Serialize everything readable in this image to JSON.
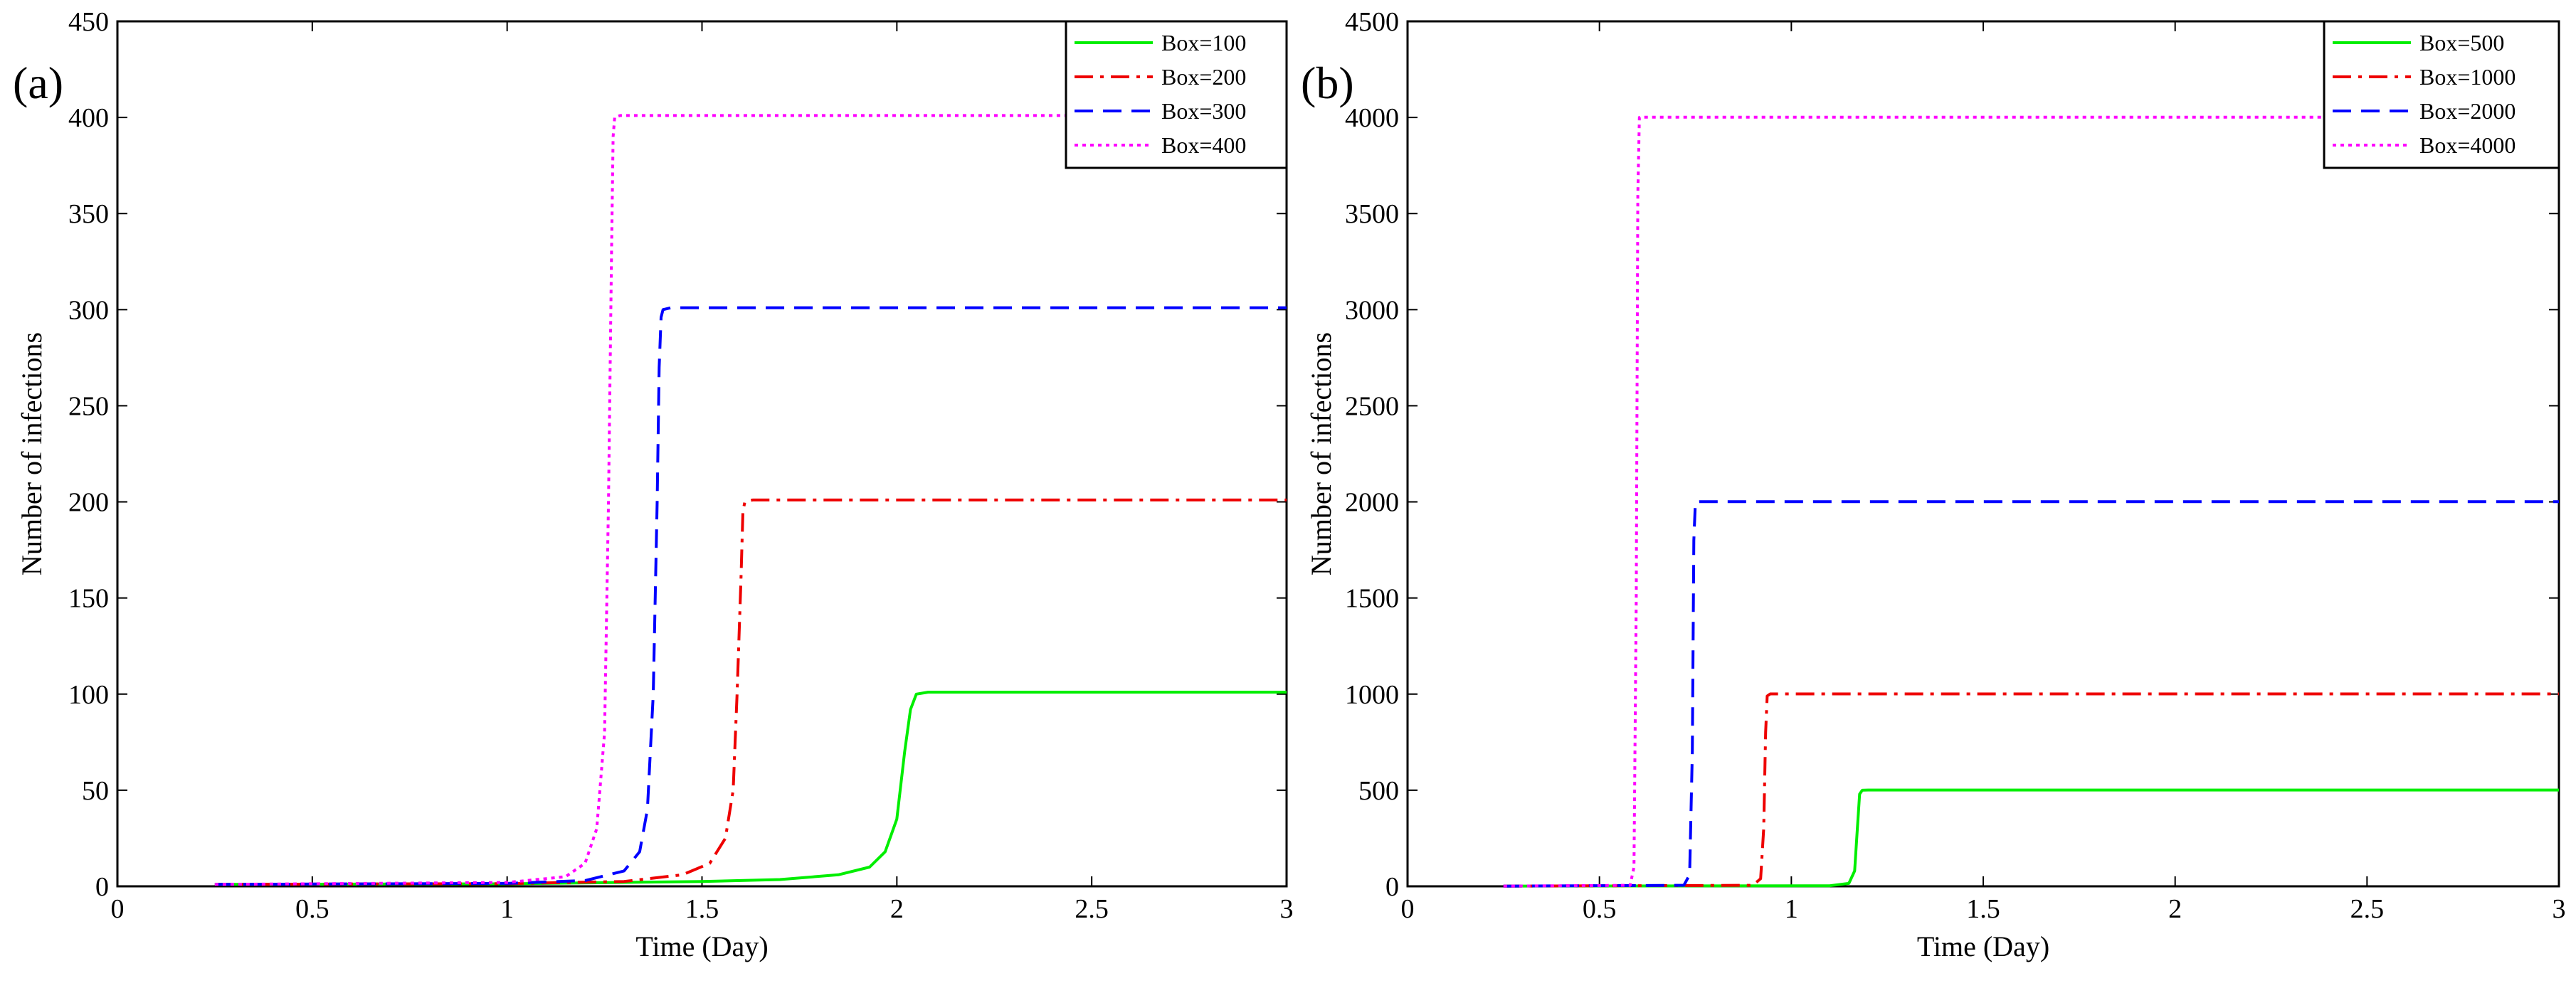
{
  "chart_data": [
    {
      "type": "line",
      "panel_label": "(a)",
      "xlabel": "Time (Day)",
      "ylabel": "Number of infections",
      "xlim": [
        0,
        3
      ],
      "ylim": [
        0,
        450
      ],
      "xticks": [
        0,
        0.5,
        1,
        1.5,
        2,
        2.5,
        3
      ],
      "xtick_labels": [
        "0",
        "0.5",
        "1",
        "1.5",
        "2",
        "2.5",
        "3"
      ],
      "yticks": [
        0,
        50,
        100,
        150,
        200,
        250,
        300,
        350,
        400,
        450
      ],
      "ytick_labels": [
        "0",
        "50",
        "100",
        "150",
        "200",
        "250",
        "300",
        "350",
        "400",
        "450"
      ],
      "legend_position": "top-right",
      "series": [
        {
          "name": "Box=100",
          "color": "#00ee00",
          "dash": "solid",
          "points": [
            [
              0.25,
              1
            ],
            [
              1.0,
              1.3
            ],
            [
              1.5,
              2.5
            ],
            [
              1.7,
              3.5
            ],
            [
              1.85,
              6
            ],
            [
              1.93,
              10
            ],
            [
              1.97,
              18
            ],
            [
              2.0,
              35
            ],
            [
              2.02,
              70
            ],
            [
              2.035,
              92
            ],
            [
              2.05,
              100
            ],
            [
              2.08,
              101
            ],
            [
              3.0,
              101
            ]
          ]
        },
        {
          "name": "Box=200",
          "color": "#ee0000",
          "dash": "dashdot",
          "points": [
            [
              0.25,
              1
            ],
            [
              1.0,
              1.4
            ],
            [
              1.3,
              2.5
            ],
            [
              1.45,
              6
            ],
            [
              1.52,
              12
            ],
            [
              1.56,
              25
            ],
            [
              1.58,
              50
            ],
            [
              1.59,
              100
            ],
            [
              1.6,
              160
            ],
            [
              1.605,
              195
            ],
            [
              1.61,
              200
            ],
            [
              1.63,
              201
            ],
            [
              3.0,
              201
            ]
          ]
        },
        {
          "name": "Box=300",
          "color": "#0000ff",
          "dash": "dashed",
          "points": [
            [
              0.25,
              1
            ],
            [
              1.0,
              1.5
            ],
            [
              1.2,
              3
            ],
            [
              1.3,
              8
            ],
            [
              1.34,
              18
            ],
            [
              1.36,
              40
            ],
            [
              1.375,
              100
            ],
            [
              1.385,
              200
            ],
            [
              1.39,
              270
            ],
            [
              1.395,
              296
            ],
            [
              1.4,
              300
            ],
            [
              1.42,
              301
            ],
            [
              3.0,
              301
            ]
          ]
        },
        {
          "name": "Box=400",
          "color": "#ff00ff",
          "dash": "dotted",
          "points": [
            [
              0.25,
              1
            ],
            [
              1.0,
              2
            ],
            [
              1.15,
              5
            ],
            [
              1.2,
              12
            ],
            [
              1.23,
              30
            ],
            [
              1.25,
              80
            ],
            [
              1.26,
              200
            ],
            [
              1.268,
              330
            ],
            [
              1.272,
              390
            ],
            [
              1.276,
              400
            ],
            [
              1.29,
              401
            ],
            [
              3.0,
              401
            ]
          ]
        }
      ]
    },
    {
      "type": "line",
      "panel_label": "(b)",
      "xlabel": "Time (Day)",
      "ylabel": "Number of infections",
      "xlim": [
        0,
        3
      ],
      "ylim": [
        0,
        4500
      ],
      "xticks": [
        0,
        0.5,
        1,
        1.5,
        2,
        2.5,
        3
      ],
      "xtick_labels": [
        "0",
        "0.5",
        "1",
        "1.5",
        "2",
        "2.5",
        "3"
      ],
      "yticks": [
        0,
        500,
        1000,
        1500,
        2000,
        2500,
        3000,
        3500,
        4000,
        4500
      ],
      "ytick_labels": [
        "0",
        "500",
        "1000",
        "1500",
        "2000",
        "2500",
        "3000",
        "3500",
        "4000",
        "4500"
      ],
      "legend_position": "top-right",
      "series": [
        {
          "name": "Box=500",
          "color": "#00ee00",
          "dash": "solid",
          "points": [
            [
              0.25,
              1
            ],
            [
              1.1,
              3
            ],
            [
              1.15,
              15
            ],
            [
              1.165,
              80
            ],
            [
              1.172,
              300
            ],
            [
              1.178,
              480
            ],
            [
              1.185,
              500
            ],
            [
              1.2,
              501
            ],
            [
              3.0,
              501
            ]
          ]
        },
        {
          "name": "Box=1000",
          "color": "#ee0000",
          "dash": "dashdot",
          "points": [
            [
              0.25,
              1
            ],
            [
              0.9,
              5
            ],
            [
              0.92,
              40
            ],
            [
              0.928,
              300
            ],
            [
              0.933,
              800
            ],
            [
              0.937,
              990
            ],
            [
              0.945,
              1001
            ],
            [
              3.0,
              1001
            ]
          ]
        },
        {
          "name": "Box=2000",
          "color": "#0000ff",
          "dash": "dashed",
          "points": [
            [
              0.25,
              1
            ],
            [
              0.72,
              5
            ],
            [
              0.735,
              60
            ],
            [
              0.742,
              700
            ],
            [
              0.746,
              1800
            ],
            [
              0.75,
              2000
            ],
            [
              0.76,
              2001
            ],
            [
              3.0,
              2001
            ]
          ]
        },
        {
          "name": "Box=4000",
          "color": "#ff00ff",
          "dash": "dotted",
          "points": [
            [
              0.25,
              1
            ],
            [
              0.58,
              5
            ],
            [
              0.59,
              100
            ],
            [
              0.596,
              1500
            ],
            [
              0.6,
              3600
            ],
            [
              0.604,
              4000
            ],
            [
              0.615,
              4001
            ],
            [
              3.0,
              4001
            ]
          ]
        }
      ]
    }
  ]
}
